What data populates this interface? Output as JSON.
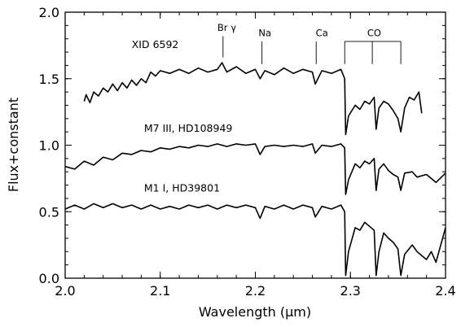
{
  "chart_data": {
    "type": "line",
    "title": "",
    "xlabel": "Wavelength (μm)",
    "ylabel": "Flux+constant",
    "xlim": [
      2.0,
      2.4
    ],
    "ylim": [
      0.0,
      2.0
    ],
    "x_ticks": [
      2.0,
      2.1,
      2.2,
      2.3,
      2.4
    ],
    "x_tick_labels": [
      "2.0",
      "2.1",
      "2.2",
      "2.3",
      "2.4"
    ],
    "y_ticks": [
      0.0,
      0.5,
      1.0,
      1.5,
      2.0
    ],
    "y_tick_labels": [
      "0.0",
      "0.5",
      "1.0",
      "1.5",
      "2.0"
    ],
    "grid": false,
    "series": [
      {
        "name": "XID 6592",
        "label_at": [
          2.07,
          1.73
        ],
        "points": [
          [
            2.02,
            1.33
          ],
          [
            2.022,
            1.38
          ],
          [
            2.026,
            1.32
          ],
          [
            2.03,
            1.4
          ],
          [
            2.035,
            1.37
          ],
          [
            2.04,
            1.43
          ],
          [
            2.045,
            1.4
          ],
          [
            2.05,
            1.46
          ],
          [
            2.055,
            1.41
          ],
          [
            2.06,
            1.47
          ],
          [
            2.065,
            1.43
          ],
          [
            2.07,
            1.49
          ],
          [
            2.075,
            1.45
          ],
          [
            2.08,
            1.5
          ],
          [
            2.085,
            1.47
          ],
          [
            2.09,
            1.55
          ],
          [
            2.095,
            1.52
          ],
          [
            2.1,
            1.56
          ],
          [
            2.11,
            1.54
          ],
          [
            2.12,
            1.57
          ],
          [
            2.13,
            1.54
          ],
          [
            2.14,
            1.58
          ],
          [
            2.15,
            1.55
          ],
          [
            2.16,
            1.57
          ],
          [
            2.165,
            1.62
          ],
          [
            2.17,
            1.55
          ],
          [
            2.18,
            1.59
          ],
          [
            2.19,
            1.54
          ],
          [
            2.2,
            1.57
          ],
          [
            2.205,
            1.5
          ],
          [
            2.21,
            1.56
          ],
          [
            2.22,
            1.53
          ],
          [
            2.23,
            1.58
          ],
          [
            2.24,
            1.54
          ],
          [
            2.25,
            1.57
          ],
          [
            2.26,
            1.55
          ],
          [
            2.263,
            1.46
          ],
          [
            2.27,
            1.56
          ],
          [
            2.28,
            1.54
          ],
          [
            2.29,
            1.57
          ],
          [
            2.294,
            1.5
          ],
          [
            2.295,
            1.08
          ],
          [
            2.298,
            1.22
          ],
          [
            2.305,
            1.3
          ],
          [
            2.31,
            1.27
          ],
          [
            2.315,
            1.33
          ],
          [
            2.32,
            1.31
          ],
          [
            2.325,
            1.36
          ],
          [
            2.327,
            1.12
          ],
          [
            2.33,
            1.28
          ],
          [
            2.335,
            1.33
          ],
          [
            2.34,
            1.31
          ],
          [
            2.345,
            1.26
          ],
          [
            2.35,
            1.2
          ],
          [
            2.353,
            1.1
          ],
          [
            2.357,
            1.28
          ],
          [
            2.362,
            1.36
          ],
          [
            2.367,
            1.34
          ],
          [
            2.372,
            1.4
          ],
          [
            2.375,
            1.24
          ]
        ]
      },
      {
        "name": "M7 III, HD108949",
        "label_at": [
          2.083,
          1.1
        ],
        "points": [
          [
            2.0,
            0.84
          ],
          [
            2.01,
            0.82
          ],
          [
            2.02,
            0.88
          ],
          [
            2.03,
            0.85
          ],
          [
            2.04,
            0.91
          ],
          [
            2.05,
            0.89
          ],
          [
            2.06,
            0.94
          ],
          [
            2.07,
            0.93
          ],
          [
            2.08,
            0.96
          ],
          [
            2.09,
            0.95
          ],
          [
            2.1,
            0.98
          ],
          [
            2.11,
            0.97
          ],
          [
            2.12,
            0.99
          ],
          [
            2.13,
            0.98
          ],
          [
            2.14,
            1.0
          ],
          [
            2.15,
            0.99
          ],
          [
            2.16,
            1.01
          ],
          [
            2.17,
            0.99
          ],
          [
            2.18,
            1.01
          ],
          [
            2.19,
            1.0
          ],
          [
            2.2,
            1.01
          ],
          [
            2.205,
            0.93
          ],
          [
            2.21,
            0.99
          ],
          [
            2.22,
            1.0
          ],
          [
            2.23,
            0.99
          ],
          [
            2.24,
            1.0
          ],
          [
            2.25,
            0.99
          ],
          [
            2.26,
            1.01
          ],
          [
            2.263,
            0.94
          ],
          [
            2.27,
            1.0
          ],
          [
            2.28,
            0.99
          ],
          [
            2.29,
            1.01
          ],
          [
            2.294,
            0.98
          ],
          [
            2.295,
            0.63
          ],
          [
            2.298,
            0.74
          ],
          [
            2.305,
            0.86
          ],
          [
            2.31,
            0.83
          ],
          [
            2.315,
            0.88
          ],
          [
            2.32,
            0.86
          ],
          [
            2.325,
            0.9
          ],
          [
            2.327,
            0.66
          ],
          [
            2.33,
            0.82
          ],
          [
            2.335,
            0.86
          ],
          [
            2.34,
            0.81
          ],
          [
            2.345,
            0.78
          ],
          [
            2.35,
            0.76
          ],
          [
            2.353,
            0.66
          ],
          [
            2.357,
            0.79
          ],
          [
            2.365,
            0.8
          ],
          [
            2.37,
            0.76
          ],
          [
            2.38,
            0.78
          ],
          [
            2.39,
            0.72
          ],
          [
            2.4,
            0.79
          ]
        ]
      },
      {
        "name": "M1 I, HD39801",
        "label_at": [
          2.083,
          0.65
        ],
        "points": [
          [
            2.0,
            0.52
          ],
          [
            2.01,
            0.55
          ],
          [
            2.02,
            0.52
          ],
          [
            2.03,
            0.56
          ],
          [
            2.04,
            0.53
          ],
          [
            2.05,
            0.56
          ],
          [
            2.06,
            0.53
          ],
          [
            2.07,
            0.55
          ],
          [
            2.08,
            0.52
          ],
          [
            2.09,
            0.55
          ],
          [
            2.1,
            0.52
          ],
          [
            2.11,
            0.54
          ],
          [
            2.12,
            0.52
          ],
          [
            2.13,
            0.55
          ],
          [
            2.14,
            0.53
          ],
          [
            2.15,
            0.55
          ],
          [
            2.16,
            0.52
          ],
          [
            2.17,
            0.55
          ],
          [
            2.18,
            0.53
          ],
          [
            2.19,
            0.55
          ],
          [
            2.2,
            0.53
          ],
          [
            2.205,
            0.45
          ],
          [
            2.21,
            0.54
          ],
          [
            2.22,
            0.52
          ],
          [
            2.23,
            0.55
          ],
          [
            2.24,
            0.52
          ],
          [
            2.25,
            0.55
          ],
          [
            2.26,
            0.53
          ],
          [
            2.263,
            0.46
          ],
          [
            2.27,
            0.54
          ],
          [
            2.28,
            0.52
          ],
          [
            2.29,
            0.55
          ],
          [
            2.294,
            0.5
          ],
          [
            2.295,
            0.02
          ],
          [
            2.298,
            0.2
          ],
          [
            2.305,
            0.38
          ],
          [
            2.31,
            0.36
          ],
          [
            2.315,
            0.42
          ],
          [
            2.32,
            0.39
          ],
          [
            2.325,
            0.36
          ],
          [
            2.327,
            0.02
          ],
          [
            2.33,
            0.2
          ],
          [
            2.335,
            0.34
          ],
          [
            2.34,
            0.3
          ],
          [
            2.345,
            0.27
          ],
          [
            2.35,
            0.22
          ],
          [
            2.353,
            0.02
          ],
          [
            2.357,
            0.18
          ],
          [
            2.365,
            0.25
          ],
          [
            2.37,
            0.2
          ],
          [
            2.38,
            0.14
          ],
          [
            2.385,
            0.2
          ],
          [
            2.39,
            0.12
          ],
          [
            2.4,
            0.38
          ]
        ]
      }
    ],
    "annotations": [
      {
        "label": "Br γ",
        "x": 2.166,
        "label_x": 2.17,
        "label_y": 1.86,
        "line_top": 1.82,
        "line_bottom": 1.66
      },
      {
        "label": "Na",
        "x": 2.207,
        "label_x": 2.21,
        "label_y": 1.82,
        "line_top": 1.78,
        "line_bottom": 1.61
      },
      {
        "label": "Ca",
        "x": 2.264,
        "label_x": 2.27,
        "label_y": 1.82,
        "line_top": 1.78,
        "line_bottom": 1.61
      }
    ],
    "co_bracket": {
      "label": "CO",
      "label_x": 2.325,
      "label_y": 1.82,
      "top": 1.78,
      "x": [
        2.294,
        2.323,
        2.353
      ],
      "bottom": 1.61
    }
  }
}
